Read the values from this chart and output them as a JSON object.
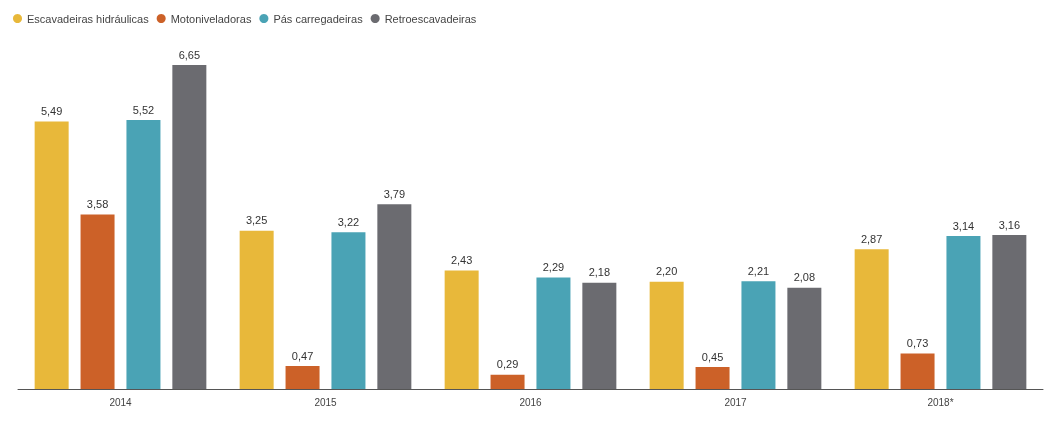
{
  "chart_data": {
    "type": "bar",
    "categories": [
      "2014",
      "2015",
      "2016",
      "2017",
      "2018*"
    ],
    "series": [
      {
        "name": "Escavadeiras hidráulicas",
        "color": "#e8b83a",
        "values": [
          5.49,
          3.25,
          2.43,
          2.2,
          2.87
        ],
        "value_labels": [
          "5,49",
          "3,25",
          "2,43",
          "2,20",
          "2,87"
        ]
      },
      {
        "name": "Motoniveladoras",
        "color": "#cc6128",
        "values": [
          3.58,
          0.47,
          0.29,
          0.45,
          0.73
        ],
        "value_labels": [
          "3,58",
          "0,47",
          "0,29",
          "0,45",
          "0,73"
        ]
      },
      {
        "name": "Pás carregadeiras",
        "color": "#4aa3b5",
        "values": [
          5.52,
          3.22,
          2.29,
          2.21,
          3.14
        ],
        "value_labels": [
          "5,52",
          "3,22",
          "2,29",
          "2,21",
          "3,14"
        ]
      },
      {
        "name": "Retroescavadeiras",
        "color": "#6b6b70",
        "values": [
          6.65,
          3.79,
          2.18,
          2.08,
          3.16
        ],
        "value_labels": [
          "6,65",
          "3,79",
          "2,18",
          "2,08",
          "3,16"
        ]
      }
    ],
    "legend": "top left"
  }
}
